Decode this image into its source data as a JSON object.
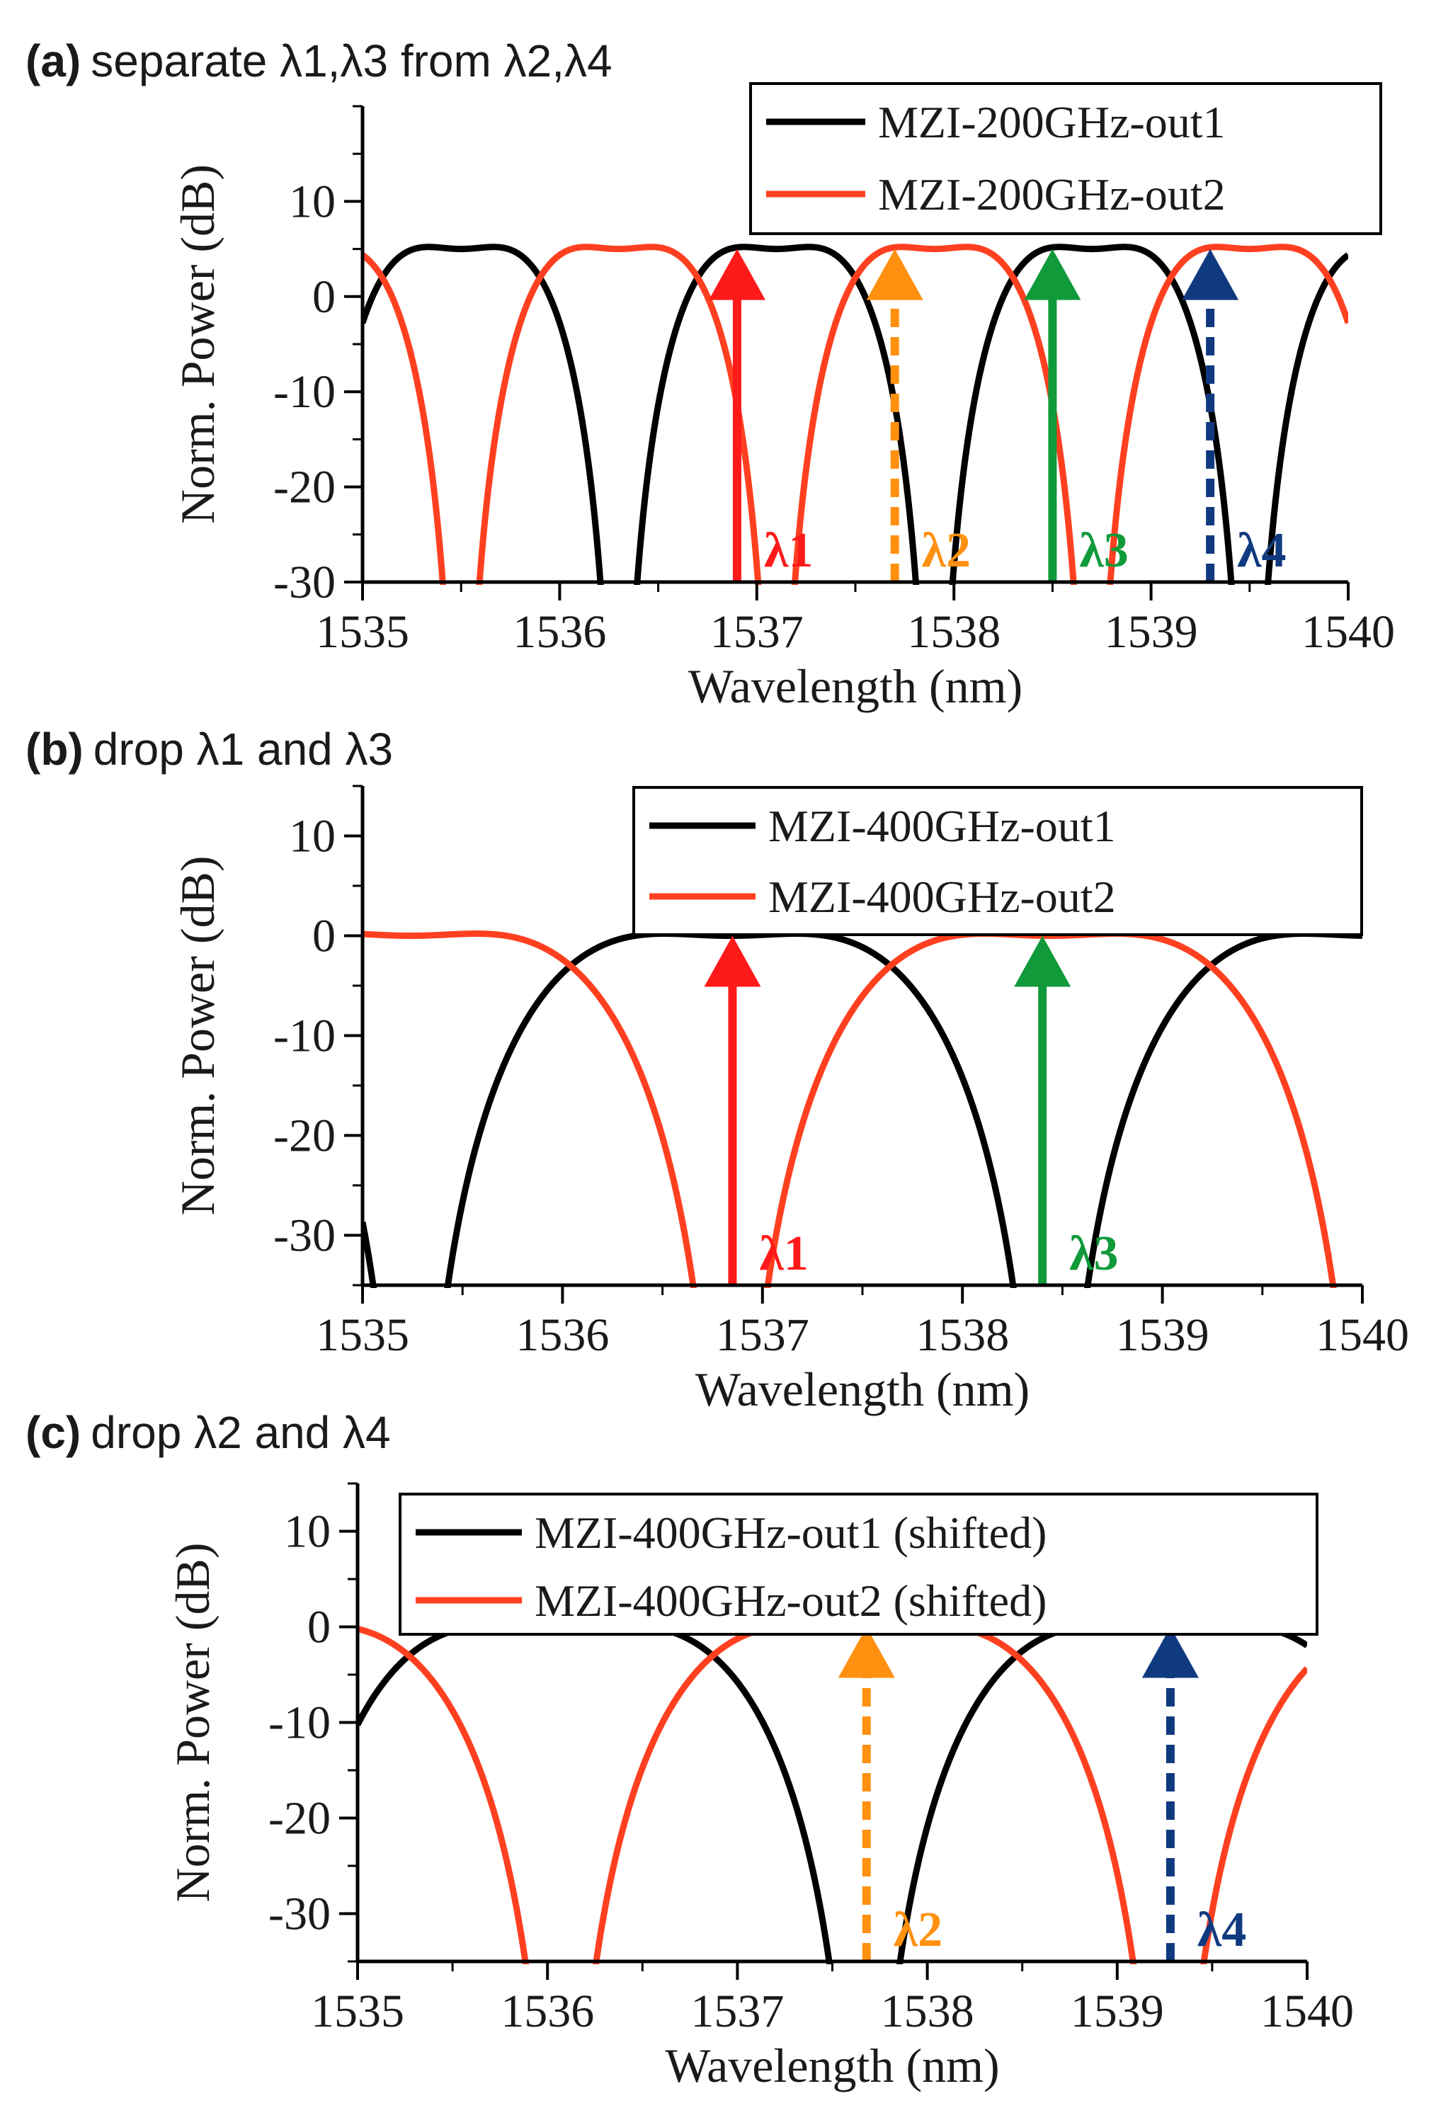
{
  "chart_data": [
    {
      "type": "line",
      "panel": "a",
      "title_tag": "(a)",
      "title_text": "separate λ1,λ3 from λ2,λ4",
      "xlabel": "Wavelength (nm)",
      "ylabel": "Norm. Power (dB)",
      "xlim": [
        1535,
        1540
      ],
      "ylim": [
        -30,
        20
      ],
      "xticks": [
        1535,
        1536,
        1537,
        1538,
        1539,
        1540
      ],
      "xtick_labels": [
        "1535",
        "1536",
        "1537",
        "1538",
        "1539",
        "1540"
      ],
      "yticks": [
        -30,
        -20,
        -10,
        0,
        10
      ],
      "ytick_labels": [
        "-30",
        "-20",
        "-10",
        "0",
        "10"
      ],
      "legend_position": "top-right",
      "series": [
        {
          "name": "MZI-200GHz-out1",
          "color": "#000000",
          "fsr": 1.6,
          "center": 1535.5,
          "shift_db": 5
        },
        {
          "name": "MZI-200GHz-out2",
          "color": "#ff4020",
          "fsr": 1.6,
          "center": 1536.3,
          "shift_db": 5
        }
      ],
      "markers": [
        {
          "label": "λ1",
          "x": 1536.9,
          "y": 5,
          "color": "#ff1a1a",
          "dashed": false
        },
        {
          "label": "λ2",
          "x": 1537.7,
          "y": 5,
          "color": "#ff9010",
          "dashed": true
        },
        {
          "label": "λ3",
          "x": 1538.5,
          "y": 5,
          "color": "#109a3a",
          "dashed": false
        },
        {
          "label": "λ4",
          "x": 1539.3,
          "y": 5,
          "color": "#103a80",
          "dashed": true
        }
      ]
    },
    {
      "type": "line",
      "panel": "b",
      "title_tag": "(b)",
      "title_text": "drop λ1 and λ3",
      "xlabel": "Wavelength (nm)",
      "ylabel": "Norm. Power (dB)",
      "xlim": [
        1535,
        1540
      ],
      "ylim": [
        -35,
        15
      ],
      "xticks": [
        1535,
        1536,
        1537,
        1538,
        1539,
        1540
      ],
      "xtick_labels": [
        "1535",
        "1536",
        "1537",
        "1538",
        "1539",
        "1540"
      ],
      "yticks": [
        -30,
        -20,
        -10,
        0,
        10
      ],
      "ytick_labels": [
        "-30",
        "-20",
        "-10",
        "0",
        "10"
      ],
      "legend_position": "top-right",
      "series": [
        {
          "name": "MZI-400GHz-out1",
          "color": "#000000",
          "fsr": 3.2,
          "center": 1536.84,
          "shift_db": 0
        },
        {
          "name": "MZI-400GHz-out2",
          "color": "#ff4020",
          "fsr": 3.2,
          "center": 1535.24,
          "shift_db": 0
        }
      ],
      "markers": [
        {
          "label": "λ1",
          "x": 1536.85,
          "y": 0,
          "color": "#ff1a1a",
          "dashed": false
        },
        {
          "label": "λ3",
          "x": 1538.4,
          "y": 0,
          "color": "#109a3a",
          "dashed": false
        }
      ]
    },
    {
      "type": "line",
      "panel": "c",
      "title_tag": "(c)",
      "title_text": "drop λ2 and λ4",
      "xlabel": "Wavelength (nm)",
      "ylabel": "Norm. Power (dB)",
      "xlim": [
        1535,
        1540
      ],
      "ylim": [
        -35,
        15
      ],
      "xticks": [
        1535,
        1536,
        1537,
        1538,
        1539,
        1540
      ],
      "xtick_labels": [
        "1535",
        "1536",
        "1537",
        "1538",
        "1539",
        "1540"
      ],
      "yticks": [
        -30,
        -20,
        -10,
        0,
        10
      ],
      "ytick_labels": [
        "-30",
        "-20",
        "-10",
        "0",
        "10"
      ],
      "legend_position": "top-right",
      "series": [
        {
          "name": "MZI-400GHz-out1 (shifted)",
          "color": "#000000",
          "fsr": 3.2,
          "center": 1536.07,
          "shift_db": 0
        },
        {
          "name": "MZI-400GHz-out2 (shifted)",
          "color": "#ff4020",
          "fsr": 3.2,
          "center": 1537.67,
          "shift_db": 0
        }
      ],
      "markers": [
        {
          "label": "λ2",
          "x": 1537.68,
          "y": 0,
          "color": "#ff9010",
          "dashed": true
        },
        {
          "label": "λ4",
          "x": 1539.28,
          "y": 0,
          "color": "#103a80",
          "dashed": true
        }
      ]
    }
  ]
}
